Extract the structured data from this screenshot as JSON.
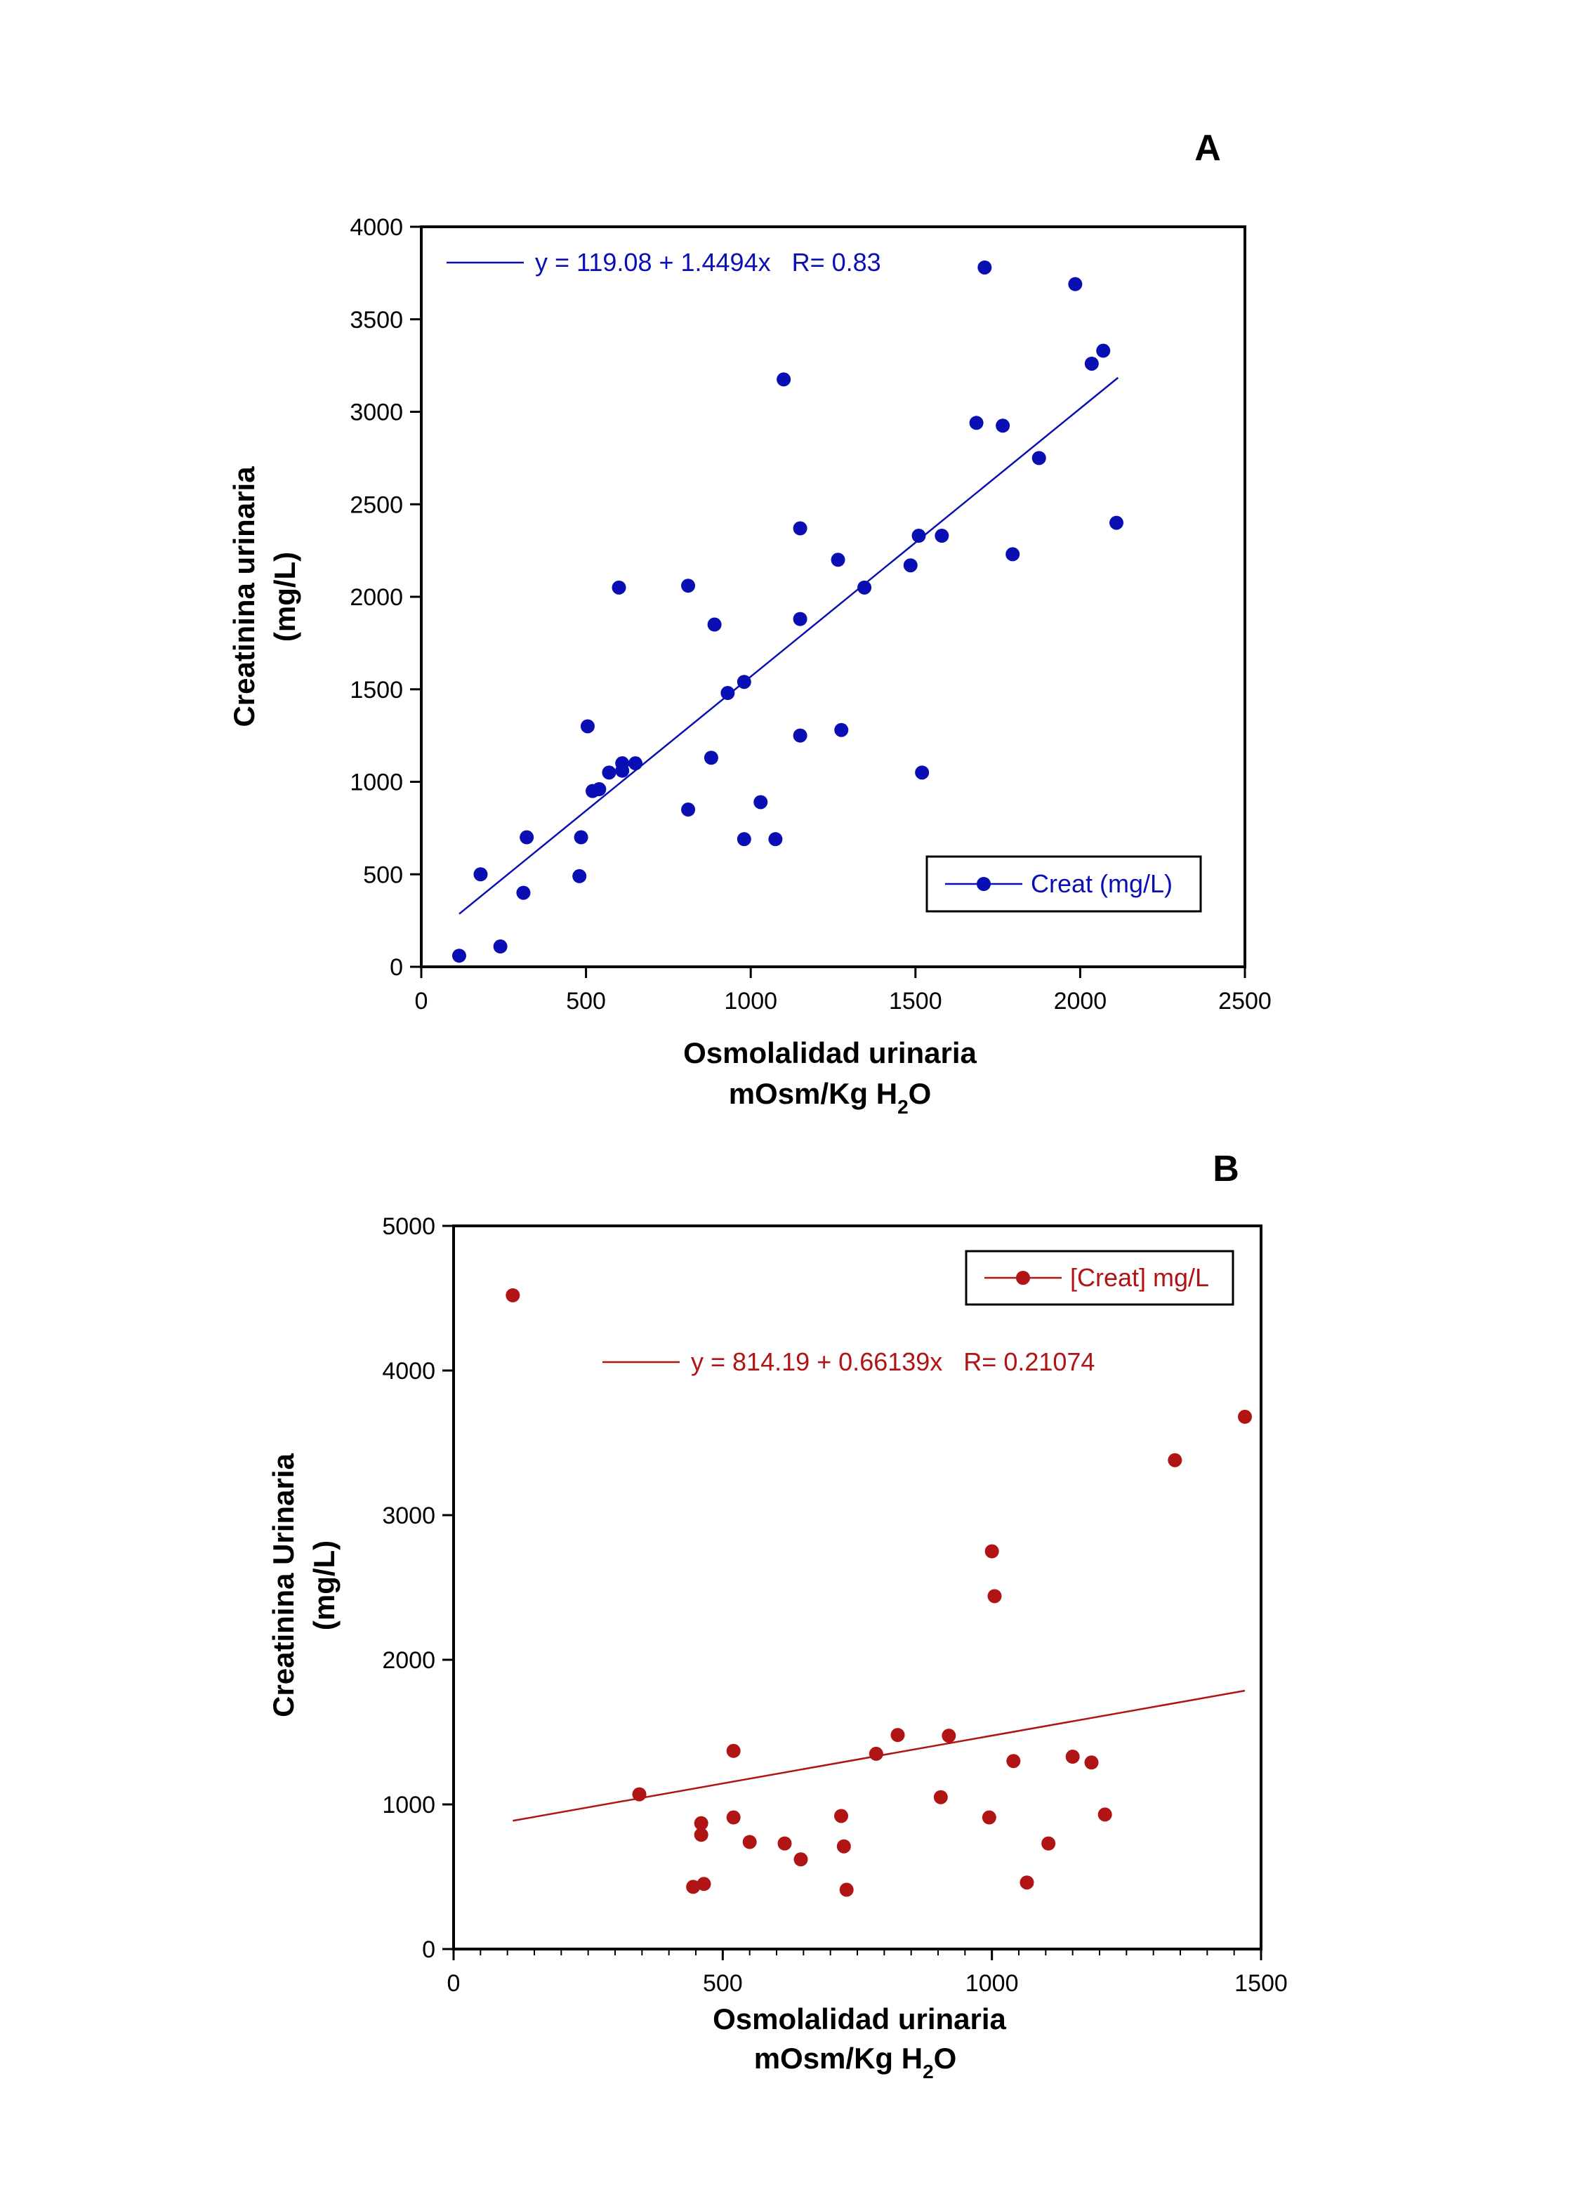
{
  "chart_data": [
    {
      "type": "scatter",
      "panel_label": "A",
      "color": "#0a0fb4",
      "xlabel_line1": "Osmolalidad urinaria",
      "xlabel_line2_main": "mOsm/Kg H",
      "xlabel_line2_sub": "2",
      "xlabel_line2_end": "O",
      "ylabel_line1": "Creatinina urinaria",
      "ylabel_line2": "(mg/L)",
      "xlim": [
        0,
        2500
      ],
      "ylim": [
        0,
        4000
      ],
      "xticks": [
        0,
        500,
        1000,
        1500,
        2000,
        2500
      ],
      "yticks": [
        0,
        500,
        1000,
        1500,
        2000,
        2500,
        3000,
        3500,
        4000
      ],
      "xticks_text": [
        "0",
        "500",
        "1000",
        "1500",
        "2000",
        "2500"
      ],
      "yticks_text": [
        "0",
        "500",
        "1000",
        "1500",
        "2000",
        "2500",
        "3000",
        "3500",
        "4000"
      ],
      "x_minor_step": 0,
      "legend_label": "Creat (mg/L)",
      "legend_position": "bottom-right",
      "fit_equation": "y = 119.08 + 1.4494x   R= 0.83",
      "fit_equation_position": "top-left",
      "fit": {
        "intercept": 119.08,
        "slope": 1.4494,
        "x_range": [
          115,
          2115
        ]
      },
      "series": [
        {
          "name": "Creat (mg/L)",
          "points": [
            [
              115,
              60
            ],
            [
              180,
              500
            ],
            [
              240,
              110
            ],
            [
              310,
              400
            ],
            [
              320,
              700
            ],
            [
              480,
              490
            ],
            [
              485,
              700
            ],
            [
              505,
              1300
            ],
            [
              520,
              950
            ],
            [
              540,
              960
            ],
            [
              570,
              1050
            ],
            [
              600,
              2050
            ],
            [
              610,
              1100
            ],
            [
              610,
              1060
            ],
            [
              650,
              1100
            ],
            [
              810,
              2060
            ],
            [
              810,
              850
            ],
            [
              880,
              1130
            ],
            [
              890,
              1850
            ],
            [
              930,
              1480
            ],
            [
              980,
              1540
            ],
            [
              980,
              690
            ],
            [
              1030,
              890
            ],
            [
              1075,
              690
            ],
            [
              1100,
              3175
            ],
            [
              1150,
              2370
            ],
            [
              1150,
              1880
            ],
            [
              1150,
              1250
            ],
            [
              1265,
              2200
            ],
            [
              1275,
              1280
            ],
            [
              1345,
              2050
            ],
            [
              1485,
              2170
            ],
            [
              1510,
              2330
            ],
            [
              1520,
              1050
            ],
            [
              1580,
              2330
            ],
            [
              1685,
              2940
            ],
            [
              1710,
              3780
            ],
            [
              1765,
              2925
            ],
            [
              1795,
              2230
            ],
            [
              1875,
              2750
            ],
            [
              1985,
              3690
            ],
            [
              2035,
              3260
            ],
            [
              2070,
              3330
            ],
            [
              2110,
              2400
            ]
          ]
        }
      ]
    },
    {
      "type": "scatter",
      "panel_label": "B",
      "color": "#b01414",
      "xlabel_line1": "Osmolalidad urinaria",
      "xlabel_line2_main": "mOsm/Kg H",
      "xlabel_line2_sub": "2",
      "xlabel_line2_end": "O",
      "ylabel_line1": "Creatinina Urinaria",
      "ylabel_line2": "(mg/L)",
      "xlim": [
        0,
        1500
      ],
      "ylim": [
        0,
        5000
      ],
      "xticks": [
        0,
        500,
        1000,
        1500
      ],
      "yticks": [
        0,
        1000,
        2000,
        3000,
        4000,
        5000
      ],
      "xticks_text": [
        "0",
        "500",
        "1000",
        "1500"
      ],
      "yticks_text": [
        "0",
        "1000",
        "2000",
        "3000",
        "4000",
        "5000"
      ],
      "x_minor_step": 50,
      "legend_label": "[Creat] mg/L",
      "legend_position": "top-right",
      "fit_equation": "y = 814.19 + 0.66139x   R= 0.21074",
      "fit_equation_position": "top-center",
      "fit": {
        "intercept": 814.19,
        "slope": 0.66139,
        "x_range": [
          110,
          1470
        ]
      },
      "series": [
        {
          "name": "[Creat] mg/L",
          "points": [
            [
              110,
              4520
            ],
            [
              345,
              1070
            ],
            [
              445,
              430
            ],
            [
              460,
              870
            ],
            [
              460,
              790
            ],
            [
              465,
              450
            ],
            [
              520,
              1370
            ],
            [
              520,
              910
            ],
            [
              550,
              740
            ],
            [
              615,
              730
            ],
            [
              645,
              620
            ],
            [
              720,
              920
            ],
            [
              725,
              710
            ],
            [
              730,
              410
            ],
            [
              785,
              1350
            ],
            [
              825,
              1480
            ],
            [
              920,
              1475
            ],
            [
              905,
              1050
            ],
            [
              995,
              910
            ],
            [
              1000,
              2750
            ],
            [
              1005,
              2440
            ],
            [
              1040,
              1300
            ],
            [
              1065,
              460
            ],
            [
              1105,
              730
            ],
            [
              1150,
              1330
            ],
            [
              1185,
              1290
            ],
            [
              1210,
              930
            ],
            [
              1340,
              3380
            ],
            [
              1470,
              3680
            ]
          ]
        }
      ]
    }
  ]
}
